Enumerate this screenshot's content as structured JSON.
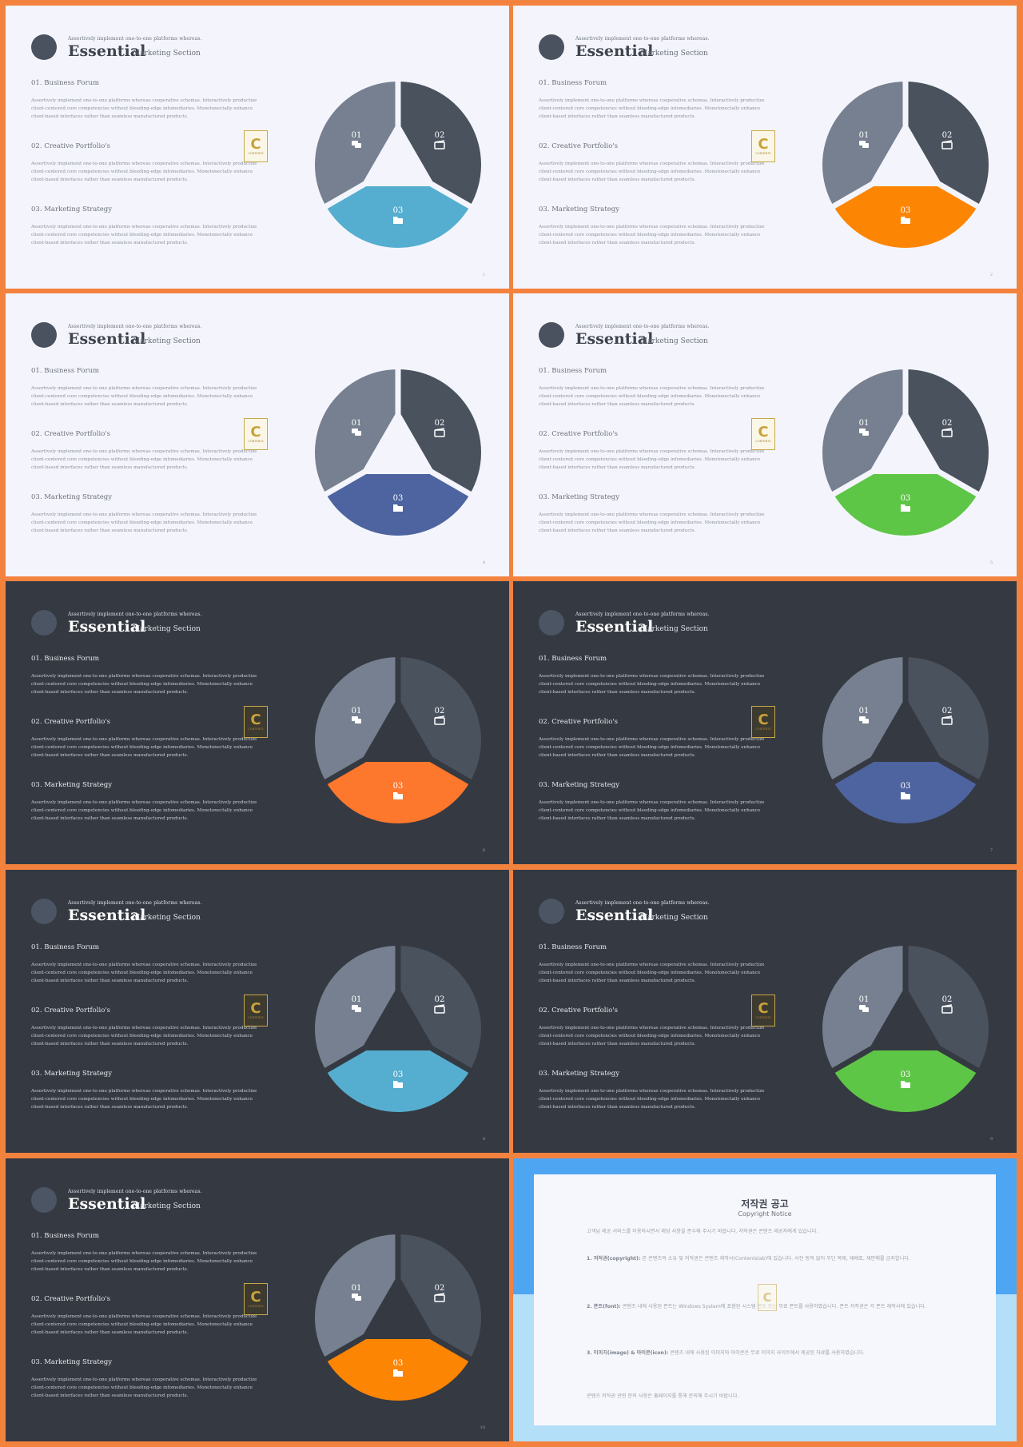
{
  "common": {
    "tagline": "Assertively implement one-to-one platforms whereas.",
    "title": "Essential",
    "subtitle": "Marketing Section",
    "sections": [
      {
        "heading": "01. Business Forum",
        "body": "Assertively implement one-to-one platforms whereas cooperative schemas. Interactively productize client-centered core competencies without bleeding-edge infomediaries. Monotonectally enhance client-based interfaces rather than seamless manufactured products."
      },
      {
        "heading": "02. Creative Portfolio's",
        "body": "Assertively implement one-to-one platforms whereas cooperative schemas. Interactively productize client-centered core competencies without bleeding-edge infomediaries. Monotonectally enhance client-based interfaces rather than seamless manufactured products."
      },
      {
        "heading": "03. Marketing Strategy",
        "body": "Assertively implement one-to-one platforms whereas cooperative schemas. Interactively productize client-centered core competencies without bleeding-edge infomediaries. Monotonectally enhance client-based interfaces rather than seamless manufactured products."
      }
    ],
    "pie_labels": [
      "01",
      "02",
      "03"
    ],
    "logo_letter": "C",
    "logo_text": "CONTENTS"
  },
  "slides": [
    {
      "theme": "light",
      "accent": "#55aed0",
      "page": "1"
    },
    {
      "theme": "light",
      "accent": "#fd8504",
      "page": "2"
    },
    {
      "theme": "light",
      "accent": "#4e64a0",
      "page": "4"
    },
    {
      "theme": "light",
      "accent": "#5ec646",
      "page": "5"
    },
    {
      "theme": "dark",
      "accent": "#fd772d",
      "page": "6"
    },
    {
      "theme": "dark",
      "accent": "#4e64a0",
      "page": "7"
    },
    {
      "theme": "dark",
      "accent": "#55aed0",
      "page": "8"
    },
    {
      "theme": "dark",
      "accent": "#5ec646",
      "page": "9"
    },
    {
      "theme": "dark",
      "accent": "#fd8504",
      "page": "10"
    }
  ],
  "colors": {
    "segment_01": "#768090",
    "segment_02": "#4a525e"
  },
  "copyright": {
    "title": "저작권 공고",
    "subtitle": "Copyright Notice",
    "intro": "고객님 제공 서비스를 이용하시면서 해당 사항을 준수해 주시기 바랍니다. 저작권은 콘텐츠 제공자에게 있습니다.",
    "items": [
      {
        "label": "1. 저작권(copyright):",
        "text": "본 콘텐츠의 소유 및 저작권은 콘텐츠 제작사(Contentslab)에 있습니다. 사전 동의 없이 무단 복제, 재배포, 재판매를 금지합니다."
      },
      {
        "label": "2. 폰트(font):",
        "text": "콘텐츠 내에 사용된 폰트는 Windows System에 포함된 시스템 폰트 또는 무료 폰트를 사용하였습니다. 폰트 저작권은 각 폰트 제작사에 있습니다."
      },
      {
        "label": "3. 이미지(image) & 아이콘(icon):",
        "text": "콘텐츠 내에 사용된 이미지와 아이콘은 무료 이미지 사이트에서 제공된 자료를 사용하였습니다."
      }
    ],
    "outro": "콘텐츠 저작권 관련 문의 사항은 홈페이지를 통해 문의해 주시기 바랍니다."
  }
}
